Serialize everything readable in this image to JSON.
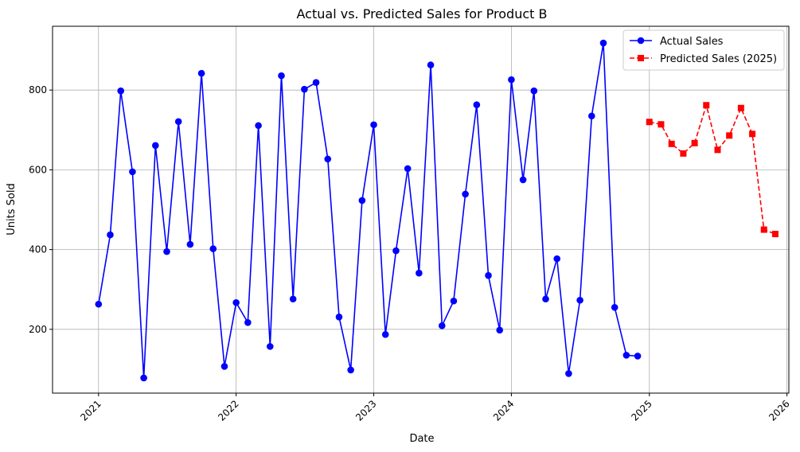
{
  "chart_data": {
    "type": "line",
    "title": "Actual vs. Predicted Sales for Product B",
    "xlabel": "Date",
    "ylabel": "Units Sold",
    "x_ticks": [
      "2021",
      "2022",
      "2023",
      "2024",
      "2025",
      "2026"
    ],
    "y_ticks": [
      200,
      400,
      600,
      800
    ],
    "xlim": [
      "2020-09-01",
      "2026-01-06"
    ],
    "ylim": [
      40,
      960
    ],
    "grid": true,
    "legend_position": "top-right",
    "series": [
      {
        "name": "Actual Sales",
        "color": "#0000ff",
        "marker": "circle",
        "linestyle": "solid",
        "x": [
          "2021-01-01",
          "2021-02-01",
          "2021-03-01",
          "2021-04-01",
          "2021-05-01",
          "2021-06-01",
          "2021-07-01",
          "2021-08-01",
          "2021-09-01",
          "2021-10-01",
          "2021-11-01",
          "2021-12-01",
          "2022-01-01",
          "2022-02-01",
          "2022-03-01",
          "2022-04-01",
          "2022-05-01",
          "2022-06-01",
          "2022-07-01",
          "2022-08-01",
          "2022-09-01",
          "2022-10-01",
          "2022-11-01",
          "2022-12-01",
          "2023-01-01",
          "2023-02-01",
          "2023-03-01",
          "2023-04-01",
          "2023-05-01",
          "2023-06-01",
          "2023-07-01",
          "2023-08-01",
          "2023-09-01",
          "2023-10-01",
          "2023-11-01",
          "2023-12-01",
          "2024-01-01",
          "2024-02-01",
          "2024-03-01",
          "2024-04-01",
          "2024-05-01",
          "2024-06-01",
          "2024-07-01",
          "2024-08-01",
          "2024-09-01",
          "2024-10-01",
          "2024-11-01",
          "2024-12-01"
        ],
        "values": [
          263,
          437,
          798,
          595,
          78,
          661,
          395,
          721,
          413,
          842,
          402,
          107,
          267,
          217,
          711,
          157,
          836,
          276,
          802,
          819,
          627,
          231,
          98,
          523,
          713,
          187,
          397,
          603,
          341,
          863,
          209,
          271,
          539,
          763,
          335,
          198,
          826,
          575,
          798,
          276,
          377,
          89,
          273,
          735,
          918,
          255,
          135,
          133
        ]
      },
      {
        "name": "Predicted Sales (2025)",
        "color": "#ff0000",
        "marker": "square",
        "linestyle": "dashed",
        "x": [
          "2025-01-01",
          "2025-02-01",
          "2025-03-01",
          "2025-04-01",
          "2025-05-01",
          "2025-06-01",
          "2025-07-01",
          "2025-08-01",
          "2025-09-01",
          "2025-10-01",
          "2025-11-01",
          "2025-12-01"
        ],
        "values": [
          720,
          714,
          665,
          641,
          667,
          762,
          650,
          686,
          755,
          690,
          450,
          439
        ]
      }
    ]
  }
}
